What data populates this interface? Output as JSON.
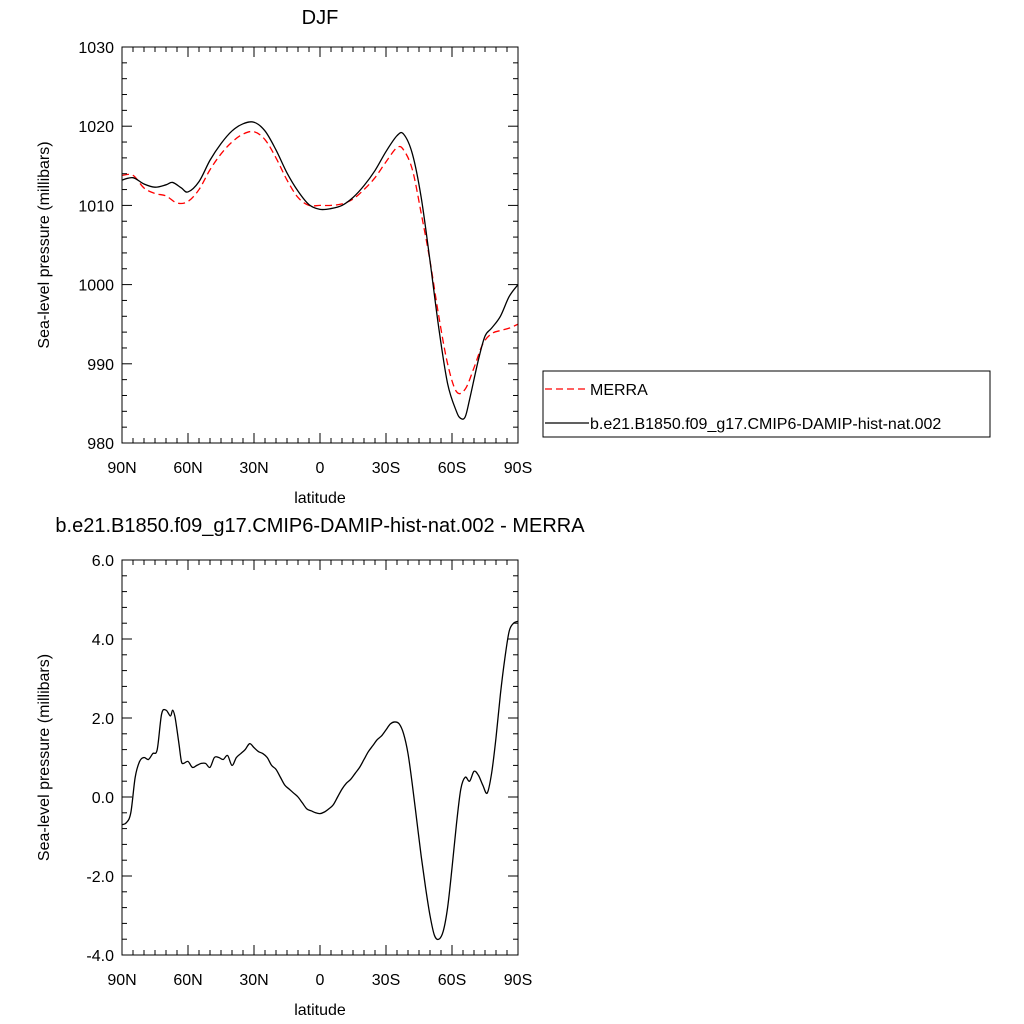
{
  "chart_data": [
    {
      "type": "line",
      "title": "DJF",
      "xlabel": "latitude",
      "ylabel": "Sea-level pressure (millibars)",
      "xlim": [
        90,
        -90
      ],
      "ylim": [
        980,
        1030
      ],
      "x_ticks": [
        {
          "value": 90,
          "label": "90N"
        },
        {
          "value": 60,
          "label": "60N"
        },
        {
          "value": 30,
          "label": "30N"
        },
        {
          "value": 0,
          "label": "0"
        },
        {
          "value": -30,
          "label": "30S"
        },
        {
          "value": -60,
          "label": "60S"
        },
        {
          "value": -90,
          "label": "90S"
        }
      ],
      "y_ticks": [
        {
          "value": 980,
          "label": "980"
        },
        {
          "value": 990,
          "label": "990"
        },
        {
          "value": 1000,
          "label": "1000"
        },
        {
          "value": 1010,
          "label": "1010"
        },
        {
          "value": 1020,
          "label": "1020"
        },
        {
          "value": 1030,
          "label": "1030"
        }
      ],
      "grid": false,
      "legend_position": "right",
      "series": [
        {
          "name": "MERRA",
          "color": "#ff0000",
          "dashed": true,
          "x": [
            90,
            85,
            80,
            75,
            70,
            65,
            60,
            55,
            50,
            45,
            40,
            35,
            30,
            25,
            20,
            15,
            10,
            5,
            0,
            -5,
            -10,
            -15,
            -20,
            -25,
            -30,
            -35,
            -38,
            -42,
            -46,
            -50,
            -54,
            -58,
            -62,
            -66,
            -70,
            -74,
            -78,
            -82,
            -86,
            -90
          ],
          "y": [
            1013.8,
            1013.8,
            1012.2,
            1011.5,
            1011.2,
            1010.3,
            1010.5,
            1012.0,
            1014.5,
            1016.5,
            1018.0,
            1019.0,
            1019.3,
            1018.3,
            1016.0,
            1013.2,
            1011.0,
            1010.0,
            1010.0,
            1010.0,
            1010.2,
            1010.8,
            1012.0,
            1013.5,
            1015.5,
            1017.3,
            1017.0,
            1014.5,
            1009.0,
            1003.0,
            996.0,
            990.0,
            986.5,
            986.8,
            989.5,
            992.5,
            993.8,
            994.2,
            994.5,
            995.0
          ]
        },
        {
          "name": "b.e21.B1850.f09_g17.CMIP6-DAMIP-hist-nat.002",
          "color": "#000000",
          "dashed": false,
          "x": [
            90,
            85,
            80,
            75,
            70,
            67,
            63,
            60,
            55,
            50,
            45,
            40,
            35,
            30,
            25,
            20,
            15,
            10,
            5,
            0,
            -5,
            -10,
            -15,
            -20,
            -25,
            -30,
            -35,
            -38,
            -42,
            -46,
            -50,
            -54,
            -58,
            -62,
            -64,
            -66,
            -68,
            -72,
            -75,
            -78,
            -82,
            -86,
            -90
          ],
          "y": [
            1013.2,
            1013.5,
            1012.7,
            1012.3,
            1012.6,
            1012.9,
            1012.2,
            1011.7,
            1013.0,
            1015.7,
            1017.8,
            1019.4,
            1020.3,
            1020.5,
            1019.4,
            1017.0,
            1014.1,
            1011.8,
            1010.1,
            1009.5,
            1009.6,
            1010.0,
            1011.0,
            1012.5,
            1014.4,
            1016.8,
            1018.8,
            1019.0,
            1016.5,
            1011.0,
            1003.0,
            994.5,
            987.5,
            984.0,
            983.1,
            983.3,
            985.5,
            990.5,
            993.5,
            994.5,
            996.0,
            998.5,
            1000.0
          ]
        }
      ]
    },
    {
      "type": "line",
      "title": "b.e21.B1850.f09_g17.CMIP6-DAMIP-hist-nat.002 - MERRA",
      "xlabel": "latitude",
      "ylabel": "Sea-level pressure (millibars)",
      "xlim": [
        90,
        -90
      ],
      "ylim": [
        -4.0,
        6.0
      ],
      "x_ticks": [
        {
          "value": 90,
          "label": "90N"
        },
        {
          "value": 60,
          "label": "60N"
        },
        {
          "value": 30,
          "label": "30N"
        },
        {
          "value": 0,
          "label": "0"
        },
        {
          "value": -30,
          "label": "30S"
        },
        {
          "value": -60,
          "label": "60S"
        },
        {
          "value": -90,
          "label": "90S"
        }
      ],
      "y_ticks": [
        {
          "value": -4,
          "label": "-4.0"
        },
        {
          "value": -2,
          "label": "-2.0"
        },
        {
          "value": 0,
          "label": "0.0"
        },
        {
          "value": 2,
          "label": "2.0"
        },
        {
          "value": 4,
          "label": "4.0"
        },
        {
          "value": 6,
          "label": "6.0"
        }
      ],
      "grid": false,
      "series": [
        {
          "color": "#000000",
          "dashed": false,
          "x": [
            90,
            88,
            86,
            84,
            82,
            80,
            78,
            76,
            74,
            72,
            70,
            68,
            67,
            66,
            65,
            64,
            63,
            62,
            60,
            58,
            56,
            54,
            52,
            50,
            48,
            46,
            44,
            42,
            40,
            38,
            36,
            34,
            32,
            30,
            28,
            26,
            24,
            22,
            20,
            18,
            16,
            14,
            12,
            10,
            8,
            6,
            4,
            2,
            0,
            -2,
            -4,
            -6,
            -8,
            -10,
            -12,
            -14,
            -16,
            -18,
            -20,
            -22,
            -24,
            -26,
            -28,
            -30,
            -32,
            -34,
            -36,
            -38,
            -40,
            -42,
            -44,
            -46,
            -48,
            -50,
            -52,
            -54,
            -56,
            -58,
            -60,
            -62,
            -64,
            -66,
            -68,
            -70,
            -72,
            -74,
            -76,
            -78,
            -80,
            -82,
            -84,
            -86,
            -88,
            -90
          ],
          "y": [
            -0.7,
            -0.65,
            -0.4,
            0.5,
            0.9,
            1.0,
            0.95,
            1.1,
            1.2,
            2.1,
            2.2,
            2.05,
            2.2,
            2.05,
            1.7,
            1.3,
            0.9,
            0.85,
            0.9,
            0.75,
            0.8,
            0.85,
            0.85,
            0.75,
            1.0,
            1.0,
            0.95,
            1.05,
            0.8,
            1.0,
            1.1,
            1.2,
            1.35,
            1.25,
            1.15,
            1.1,
            1.0,
            0.8,
            0.7,
            0.5,
            0.3,
            0.2,
            0.1,
            0.0,
            -0.15,
            -0.3,
            -0.35,
            -0.4,
            -0.42,
            -0.38,
            -0.3,
            -0.2,
            0.0,
            0.2,
            0.35,
            0.45,
            0.6,
            0.75,
            0.95,
            1.15,
            1.3,
            1.45,
            1.55,
            1.7,
            1.85,
            1.9,
            1.85,
            1.6,
            1.1,
            0.3,
            -0.6,
            -1.5,
            -2.3,
            -3.0,
            -3.5,
            -3.6,
            -3.4,
            -2.8,
            -1.8,
            -0.7,
            0.2,
            0.5,
            0.4,
            0.65,
            0.55,
            0.3,
            0.1,
            0.6,
            1.5,
            2.6,
            3.5,
            4.2,
            4.4,
            4.45
          ]
        }
      ]
    }
  ]
}
